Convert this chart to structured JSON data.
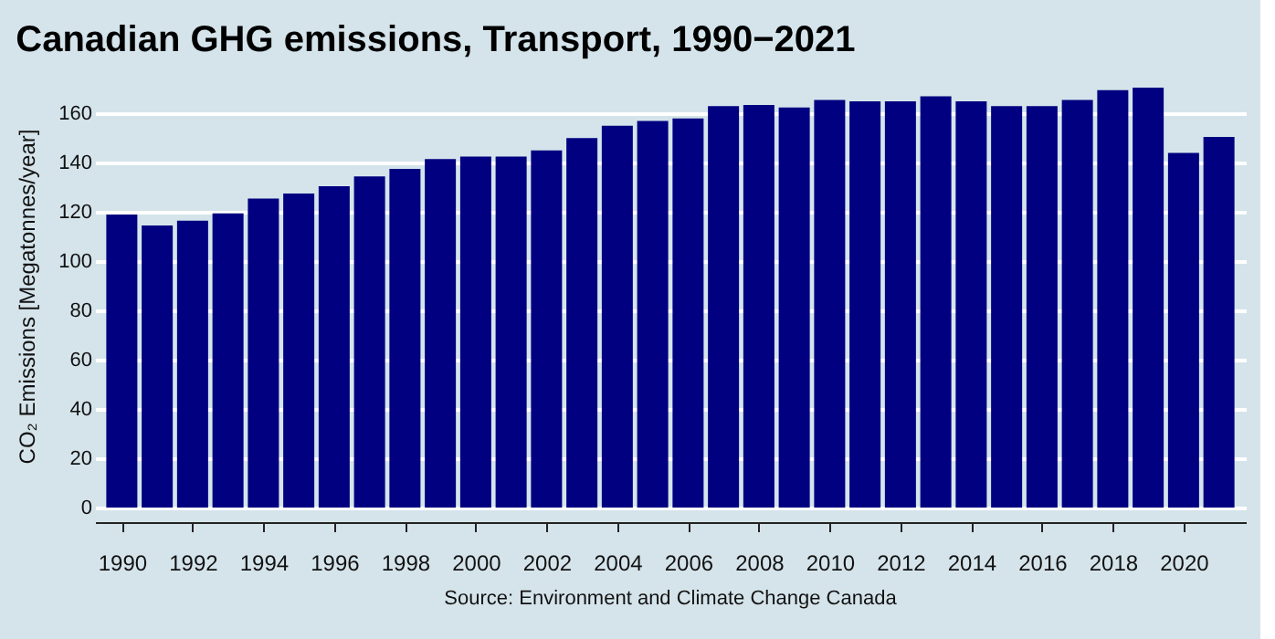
{
  "chart_data": {
    "type": "bar",
    "title": "Canadian GHG emissions, Transport, 1990−2021",
    "ylabel": "CO₂ Emissions [Megatonnes/year]",
    "x": [
      1990,
      1991,
      1992,
      1993,
      1994,
      1995,
      1996,
      1997,
      1998,
      1999,
      2000,
      2001,
      2002,
      2003,
      2004,
      2005,
      2006,
      2007,
      2008,
      2009,
      2010,
      2011,
      2012,
      2013,
      2014,
      2015,
      2016,
      2017,
      2018,
      2019,
      2020,
      2021
    ],
    "values": [
      119,
      114.5,
      116.5,
      119.5,
      125.5,
      127.5,
      130.5,
      134.5,
      137.5,
      141.5,
      142.5,
      142.5,
      145,
      150,
      155,
      157,
      158,
      163,
      163.5,
      162.5,
      165.5,
      165,
      165,
      167,
      165,
      163,
      163,
      165.5,
      169.5,
      170.5,
      144,
      150.5
    ],
    "color": "#000080",
    "xlim": [
      1989.5,
      2021.5
    ],
    "xticks": [
      1990,
      1992,
      1994,
      1996,
      1998,
      2000,
      2002,
      2004,
      2006,
      2008,
      2010,
      2012,
      2014,
      2016,
      2018,
      2020
    ],
    "ylim": [
      0,
      172
    ],
    "yticks": [
      0,
      20,
      40,
      60,
      80,
      100,
      120,
      140,
      160
    ],
    "grid": "y",
    "annotations": [
      "Source: Environment and Climate Change Canada"
    ]
  }
}
